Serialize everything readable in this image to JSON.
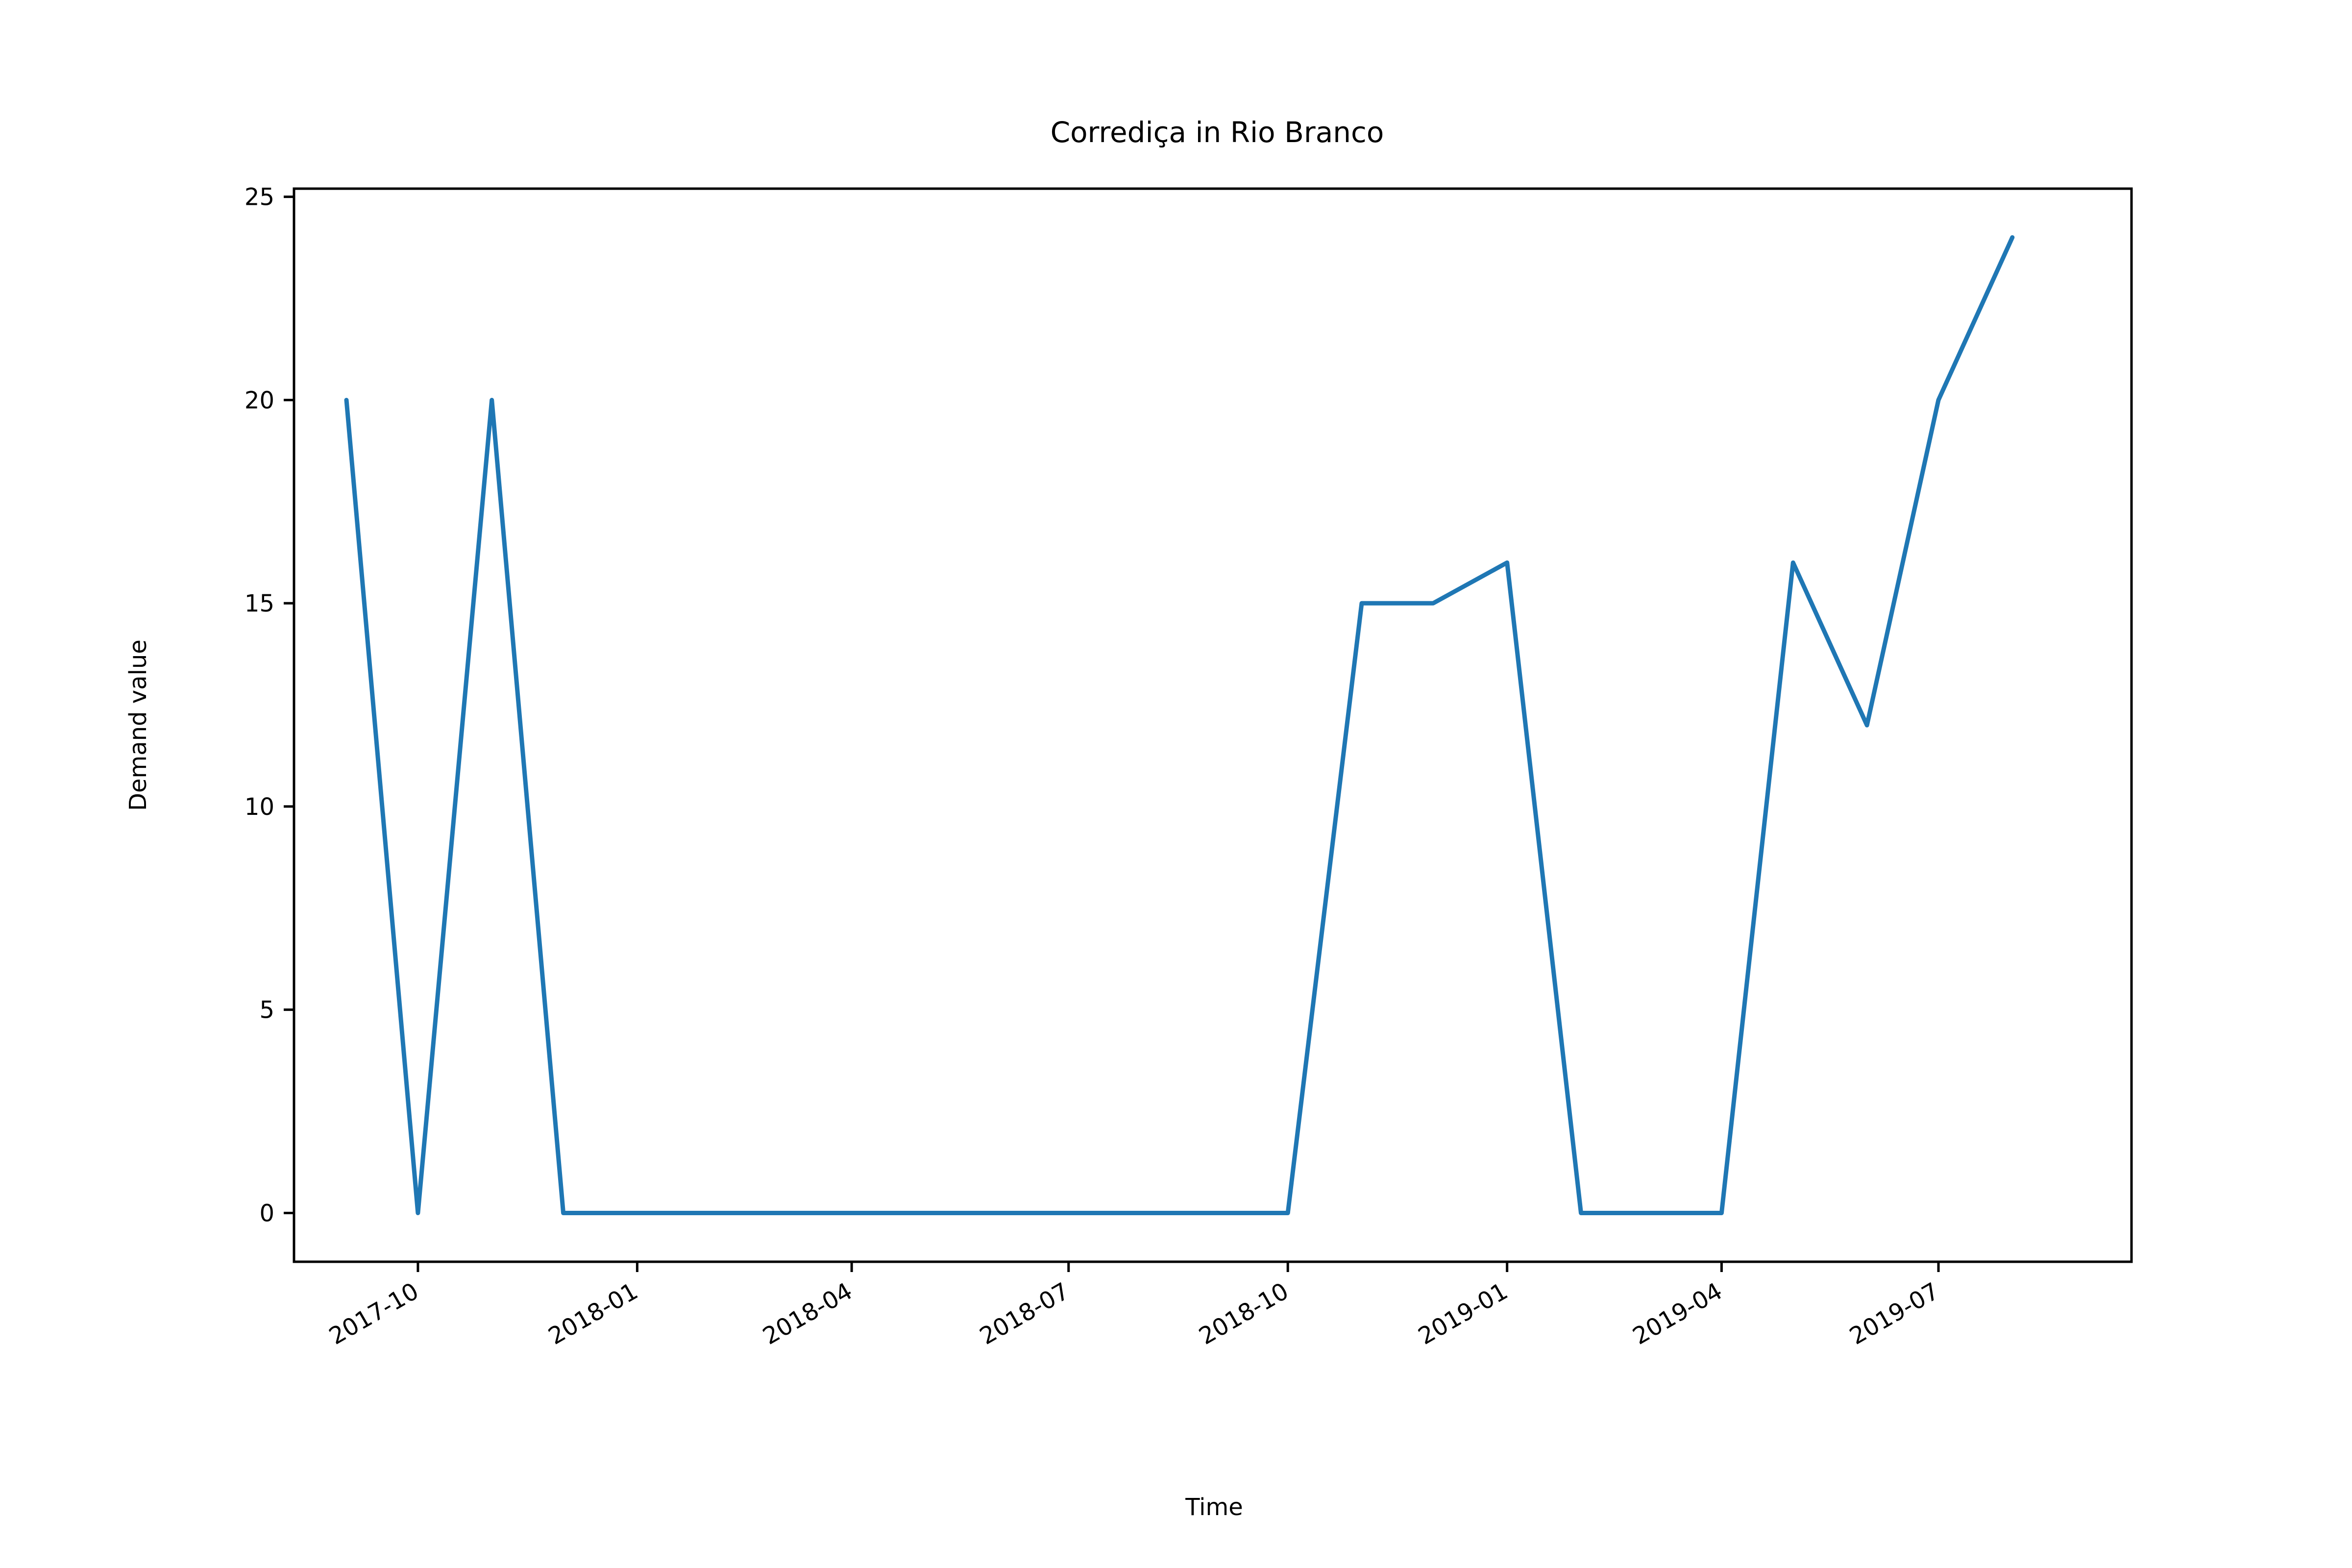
{
  "chart_data": {
    "type": "line",
    "title": "Corrediça in Rio Branco",
    "xlabel": "Time",
    "ylabel": "Demand value",
    "xlim": [
      "2017-08-10",
      "2019-09-20"
    ],
    "ylim": [
      -1.2,
      25.2
    ],
    "y_ticks": [
      0,
      5,
      10,
      15,
      20,
      25
    ],
    "x_ticks": [
      "2017-10",
      "2018-01",
      "2018-04",
      "2018-07",
      "2018-10",
      "2019-01",
      "2019-04",
      "2019-07"
    ],
    "grid": false,
    "legend": "none",
    "series": [
      {
        "color": "#1f77b4",
        "x": [
          "2017-09-01",
          "2017-10-01",
          "2017-11-01",
          "2017-12-01",
          "2018-01-01",
          "2018-02-01",
          "2018-03-01",
          "2018-04-01",
          "2018-05-01",
          "2018-06-01",
          "2018-07-01",
          "2018-08-01",
          "2018-09-01",
          "2018-10-01",
          "2018-11-01",
          "2018-12-01",
          "2019-01-01",
          "2019-02-01",
          "2019-03-01",
          "2019-04-01",
          "2019-05-01",
          "2019-06-01",
          "2019-07-01",
          "2019-08-01"
        ],
        "values": [
          20,
          0,
          20,
          0,
          0,
          0,
          0,
          0,
          0,
          0,
          0,
          0,
          0,
          0,
          15,
          15,
          16,
          0,
          0,
          0,
          16,
          12,
          20,
          24
        ]
      }
    ]
  }
}
